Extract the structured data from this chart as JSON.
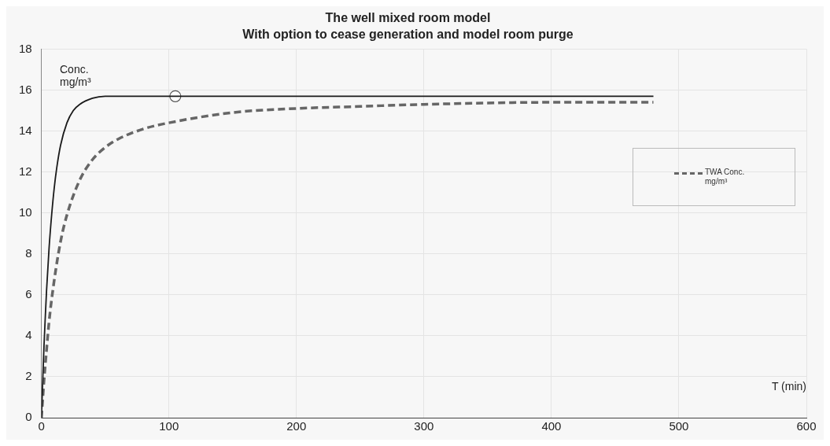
{
  "chart_data": {
    "type": "line",
    "title": "The well mixed room model",
    "subtitle": "With option to cease generation and model room purge",
    "xlabel": "T (min)",
    "ylabel": "Conc. mg/m³",
    "xlim": [
      0,
      600
    ],
    "xticks": [
      0,
      100,
      200,
      300,
      400,
      500,
      600
    ],
    "ylim": [
      0,
      18
    ],
    "yticks": [
      0,
      2,
      4,
      6,
      8,
      10,
      12,
      14,
      16,
      18
    ],
    "grid": true,
    "legend": "right",
    "series": [
      {
        "color": "#1a1a1a",
        "line_style": "solid",
        "marker": "none",
        "x": [
          0,
          1,
          2,
          3,
          4,
          6,
          8,
          10,
          12,
          15,
          20,
          25,
          30,
          40,
          50,
          60,
          105,
          480
        ],
        "values": [
          0,
          1.8,
          3.5,
          4.9,
          6.2,
          8.3,
          9.9,
          11.2,
          12.2,
          13.3,
          14.4,
          15.0,
          15.3,
          15.6,
          15.7,
          15.7,
          15.7,
          15.7
        ]
      },
      {
        "name": "TWA Conc. mg/m³",
        "color": "#666666",
        "line_style": "dashed",
        "marker": "none",
        "x": [
          0,
          1,
          2,
          4,
          6,
          10,
          15,
          20,
          30,
          40,
          50,
          60,
          80,
          100,
          150,
          200,
          250,
          300,
          400,
          480
        ],
        "values": [
          0,
          0.9,
          1.8,
          3.3,
          4.7,
          6.7,
          8.6,
          9.9,
          11.6,
          12.6,
          13.2,
          13.6,
          14.1,
          14.4,
          14.9,
          15.1,
          15.2,
          15.3,
          15.4,
          15.4
        ]
      },
      {
        "type": "scatter",
        "color": "#ffffff",
        "marker": "circle",
        "x": [
          105
        ],
        "values": [
          15.7
        ]
      }
    ]
  }
}
